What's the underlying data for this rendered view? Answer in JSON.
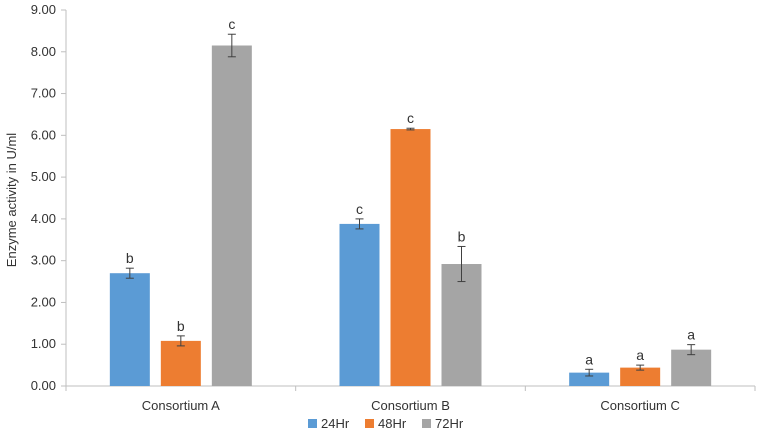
{
  "chart_data": {
    "type": "bar",
    "title": "",
    "xlabel": "",
    "ylabel": "Enzyme activity in U/ml",
    "ylim": [
      0,
      9
    ],
    "yticks": [
      "0.00",
      "1.00",
      "2.00",
      "3.00",
      "4.00",
      "5.00",
      "6.00",
      "7.00",
      "8.00",
      "9.00"
    ],
    "categories": [
      "Consortium A",
      "Consortium B",
      "Consortium C"
    ],
    "grid": false,
    "legend_position": "bottom",
    "series": [
      {
        "name": "24Hr",
        "color": "#5B9BD5",
        "values": [
          2.7,
          3.88,
          0.32
        ],
        "errors": [
          0.12,
          0.12,
          0.08
        ],
        "labels": [
          "b",
          "c",
          "a"
        ]
      },
      {
        "name": "48Hr",
        "color": "#ED7D31",
        "values": [
          1.08,
          6.15,
          0.44
        ],
        "errors": [
          0.12,
          0.02,
          0.06
        ],
        "labels": [
          "b",
          "c",
          "a"
        ]
      },
      {
        "name": "72Hr",
        "color": "#A5A5A5",
        "values": [
          8.15,
          2.92,
          0.87
        ],
        "errors": [
          0.27,
          0.42,
          0.12
        ],
        "labels": [
          "c",
          "b",
          "a"
        ]
      }
    ]
  }
}
